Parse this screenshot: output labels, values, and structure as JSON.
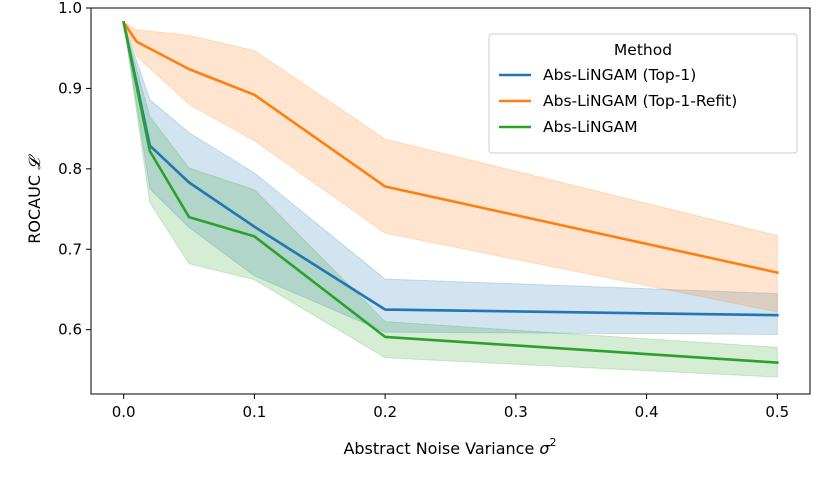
{
  "chart_data": {
    "type": "line",
    "xlabel": "Abstract Noise Variance",
    "xlabel_symbol": "σ",
    "xlabel_superscript": "2",
    "ylabel": "ROCAUC",
    "ylabel_symbol": "𝓛",
    "xlim": [
      -0.025,
      0.525
    ],
    "ylim": [
      0.52,
      1.0
    ],
    "xticks": [
      0.0,
      0.1,
      0.2,
      0.3,
      0.4,
      0.5
    ],
    "xtick_labels": [
      "0.0",
      "0.1",
      "0.2",
      "0.3",
      "0.4",
      "0.5"
    ],
    "yticks": [
      0.6,
      0.7,
      0.8,
      0.9,
      1.0
    ],
    "ytick_labels": [
      "0.6",
      "0.7",
      "0.8",
      "0.9",
      "1.0"
    ],
    "grid": false,
    "legend": {
      "title": "Method",
      "position": "top-right"
    },
    "series": [
      {
        "name": "Abs-LiNGAM (Top-1)",
        "color": "#1f77b4",
        "x": [
          0.0,
          0.02,
          0.05,
          0.1,
          0.2,
          0.5
        ],
        "y": [
          0.982,
          0.829,
          0.783,
          0.728,
          0.625,
          0.618
        ],
        "lower": [
          0.982,
          0.775,
          0.727,
          0.667,
          0.597,
          0.594
        ],
        "upper": [
          0.982,
          0.886,
          0.845,
          0.795,
          0.663,
          0.645
        ]
      },
      {
        "name": "Abs-LiNGAM (Top-1-Refit)",
        "color": "#ff7f0e",
        "x": [
          0.0,
          0.01,
          0.05,
          0.1,
          0.2,
          0.5
        ],
        "y": [
          0.982,
          0.958,
          0.924,
          0.892,
          0.778,
          0.671
        ],
        "lower": [
          0.982,
          0.94,
          0.88,
          0.835,
          0.72,
          0.622
        ],
        "upper": [
          0.982,
          0.973,
          0.966,
          0.947,
          0.837,
          0.717
        ]
      },
      {
        "name": "Abs-LiNGAM",
        "color": "#2ca02c",
        "x": [
          0.0,
          0.02,
          0.05,
          0.1,
          0.2,
          0.5
        ],
        "y": [
          0.982,
          0.822,
          0.74,
          0.716,
          0.591,
          0.559
        ],
        "lower": [
          0.982,
          0.758,
          0.682,
          0.662,
          0.565,
          0.541
        ],
        "upper": [
          0.982,
          0.865,
          0.801,
          0.774,
          0.61,
          0.578
        ]
      }
    ]
  }
}
